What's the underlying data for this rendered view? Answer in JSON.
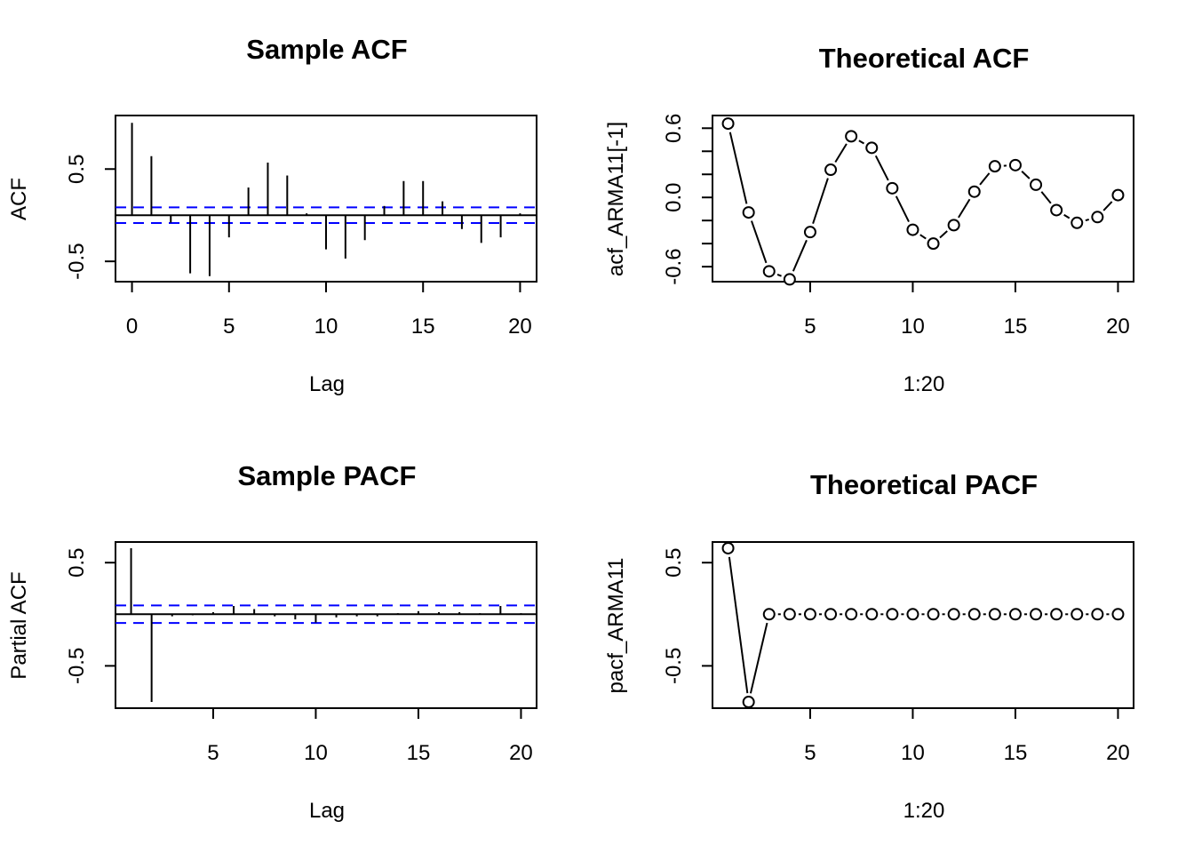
{
  "colors": {
    "background": "#ffffff",
    "ink": "#000000",
    "confidence_band": "#0000ff"
  },
  "chart_data": [
    {
      "type": "bar",
      "title": "Sample ACF",
      "xlabel": "Lag",
      "ylabel": "ACF",
      "x": [
        0,
        1,
        2,
        3,
        4,
        5,
        6,
        7,
        8,
        9,
        10,
        11,
        12,
        13,
        14,
        15,
        16,
        17,
        18,
        19,
        20
      ],
      "values": [
        1.0,
        0.64,
        -0.08,
        -0.63,
        -0.66,
        -0.24,
        0.3,
        0.57,
        0.43,
        0.02,
        -0.37,
        -0.47,
        -0.27,
        0.1,
        0.37,
        0.37,
        0.15,
        -0.15,
        -0.3,
        -0.24,
        0.02
      ],
      "confidence_band": 0.085,
      "xlim": [
        -0.85,
        20.85
      ],
      "ylim": [
        -0.72,
        1.08
      ],
      "xticks": [
        0,
        5,
        10,
        15,
        20
      ],
      "xtick_labels": [
        "0",
        "5",
        "10",
        "15",
        "20"
      ],
      "yticks": [
        -0.5,
        0.5
      ],
      "ytick_labels": [
        "-0.5",
        "0.5"
      ],
      "zero_line": true,
      "grid": false
    },
    {
      "type": "line",
      "title": "Theoretical ACF",
      "xlabel": "1:20",
      "ylabel": "acf_ARMA11[-1]",
      "x": [
        1,
        2,
        3,
        4,
        5,
        6,
        7,
        8,
        9,
        10,
        11,
        12,
        13,
        14,
        15,
        16,
        17,
        18,
        19,
        20
      ],
      "values": [
        0.64,
        -0.13,
        -0.64,
        -0.71,
        -0.3,
        0.24,
        0.53,
        0.43,
        0.08,
        -0.28,
        -0.4,
        -0.24,
        0.05,
        0.27,
        0.28,
        0.11,
        -0.11,
        -0.22,
        -0.17,
        0.02
      ],
      "xlim": [
        0.24,
        20.76
      ],
      "ylim": [
        -0.73,
        0.71
      ],
      "xticks": [
        5,
        10,
        15,
        20
      ],
      "xtick_labels": [
        "5",
        "10",
        "15",
        "20"
      ],
      "yticks": [
        -0.6,
        -0.4,
        -0.2,
        0.0,
        0.2,
        0.4,
        0.6
      ],
      "ytick_labels": [
        "-0.6",
        "",
        "",
        "0.0",
        "",
        "",
        "0.6"
      ],
      "markers": "open-circle",
      "line_style": "b",
      "grid": false
    },
    {
      "type": "bar",
      "title": "Sample PACF",
      "xlabel": "Lag",
      "ylabel": "Partial ACF",
      "x": [
        1,
        2,
        3,
        4,
        5,
        6,
        7,
        8,
        9,
        10,
        11,
        12,
        13,
        14,
        15,
        16,
        17,
        18,
        19,
        20
      ],
      "values": [
        0.64,
        -0.85,
        -0.02,
        -0.01,
        0.02,
        0.08,
        0.05,
        -0.02,
        -0.05,
        -0.08,
        -0.03,
        -0.02,
        -0.02,
        0.01,
        0.03,
        0.02,
        0.02,
        0.01,
        0.08,
        0.01
      ],
      "confidence_band": 0.085,
      "xlim": [
        0.24,
        20.76
      ],
      "ylim": [
        -0.91,
        0.7
      ],
      "xticks": [
        5,
        10,
        15,
        20
      ],
      "xtick_labels": [
        "5",
        "10",
        "15",
        "20"
      ],
      "yticks": [
        -0.5,
        0.5
      ],
      "ytick_labels": [
        "-0.5",
        "0.5"
      ],
      "zero_line": true,
      "grid": false
    },
    {
      "type": "line",
      "title": "Theoretical PACF",
      "xlabel": "1:20",
      "ylabel": "pacf_ARMA11",
      "x": [
        1,
        2,
        3,
        4,
        5,
        6,
        7,
        8,
        9,
        10,
        11,
        12,
        13,
        14,
        15,
        16,
        17,
        18,
        19,
        20
      ],
      "values": [
        0.64,
        -0.85,
        0,
        0,
        0,
        0,
        0,
        0,
        0,
        0,
        0,
        0,
        0,
        0,
        0,
        0,
        0,
        0,
        0,
        0
      ],
      "xlim": [
        0.24,
        20.76
      ],
      "ylim": [
        -0.91,
        0.7
      ],
      "xticks": [
        5,
        10,
        15,
        20
      ],
      "xtick_labels": [
        "5",
        "10",
        "15",
        "20"
      ],
      "yticks": [
        -0.5,
        0.5
      ],
      "ytick_labels": [
        "-0.5",
        "0.5"
      ],
      "markers": "open-circle",
      "line_style": "b",
      "grid": false
    }
  ]
}
